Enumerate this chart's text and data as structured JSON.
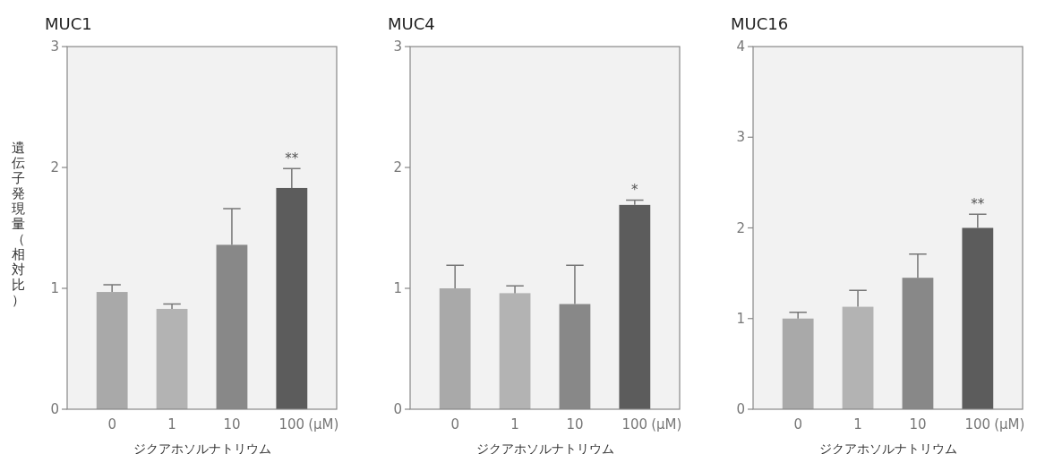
{
  "chart_data": [
    {
      "type": "bar",
      "title": "MUC1",
      "ylabel": "遺伝子発現量（相対比）",
      "xlabel": "ジクアホソルナトリウム",
      "categories": [
        "0",
        "1",
        "10",
        "100"
      ],
      "values": [
        0.97,
        0.83,
        1.36,
        1.83
      ],
      "colors": [
        "#a9a9a9",
        "#b3b3b3",
        "#888888",
        "#5c5c5c"
      ],
      "errors": [
        [
          0.97,
          1.03
        ],
        [
          0.83,
          0.87
        ],
        [
          1.36,
          1.66
        ],
        [
          1.83,
          1.99
        ]
      ],
      "ylim": [
        0,
        3
      ],
      "yticks": [
        0,
        1,
        2,
        3
      ],
      "annotations": [
        {
          "text": "**",
          "x": "100",
          "y": 1.99
        },
        "(μM)"
      ]
    },
    {
      "type": "bar",
      "title": "MUC4",
      "xlabel": "ジクアホソルナトリウム",
      "categories": [
        "0",
        "1",
        "10",
        "100"
      ],
      "values": [
        1.0,
        0.96,
        0.87,
        1.69
      ],
      "colors": [
        "#a9a9a9",
        "#b3b3b3",
        "#888888",
        "#5c5c5c"
      ],
      "errors": [
        [
          1.0,
          1.19
        ],
        [
          0.96,
          1.02
        ],
        [
          0.87,
          1.19
        ],
        [
          1.69,
          1.73
        ]
      ],
      "ylim": [
        0,
        3
      ],
      "yticks": [
        0,
        1,
        2,
        3
      ],
      "annotations": [
        {
          "text": "*",
          "x": "100",
          "y": 1.73
        },
        "(μM)"
      ]
    },
    {
      "type": "bar",
      "title": "MUC16",
      "xlabel": "ジクアホソルナトリウム",
      "categories": [
        "0",
        "1",
        "10",
        "100"
      ],
      "values": [
        1.0,
        1.13,
        1.45,
        2.0
      ],
      "colors": [
        "#a9a9a9",
        "#b3b3b3",
        "#888888",
        "#5c5c5c"
      ],
      "errors": [
        [
          1.0,
          1.07
        ],
        [
          1.13,
          1.31
        ],
        [
          1.45,
          1.71
        ],
        [
          2.0,
          2.15
        ]
      ],
      "ylim": [
        0,
        4
      ],
      "yticks": [
        0,
        1,
        2,
        3,
        4
      ],
      "annotations": [
        {
          "text": "**",
          "x": "100",
          "y": 2.15
        },
        "(μM)"
      ]
    }
  ]
}
